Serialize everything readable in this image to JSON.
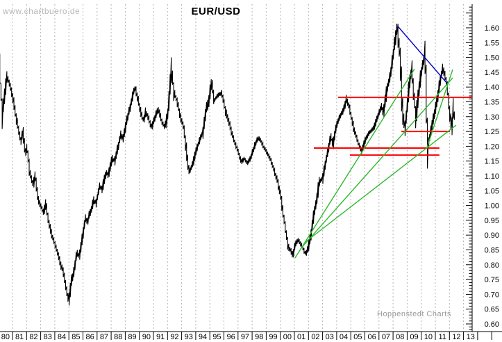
{
  "watermark": "www.chartbuero.de",
  "title": "EUR/USD",
  "credit": "Hoppenstedt Charts",
  "colors": {
    "background": "#ffffff",
    "price_bars": "#000000",
    "grid": "#b4b4b4",
    "axis": "#000000",
    "trend_green": "#2db82d",
    "trend_blue": "#0000c8",
    "support_red": "#ff0000",
    "watermark_gray": "#b8b8b8",
    "credit_gray": "#9a9a9a"
  },
  "chart_data": {
    "type": "bar",
    "title": "EUR/USD",
    "subtitle": "",
    "xlabel": "",
    "ylabel": "",
    "grid": "vertical-dashed-yearly",
    "y_axis": {
      "side": "right",
      "min": 0.6,
      "max": 1.6,
      "label_step": 0.05,
      "minor_tick_step": 0.01,
      "tick_labels": [
        "1.60",
        "1.55",
        "1.50",
        "1.45",
        "1.40",
        "1.35",
        "1.30",
        "1.25",
        "1.20",
        "1.15",
        "1.10",
        "1.05",
        "1.00",
        "0.95",
        "0.90",
        "0.85",
        "0.80",
        "0.75",
        "0.70",
        "0.65",
        "0.60"
      ]
    },
    "x_axis": {
      "start_year": 1980,
      "end_year": 2014,
      "tick_labels": [
        "80",
        "81",
        "82",
        "83",
        "84",
        "85",
        "86",
        "87",
        "88",
        "89",
        "90",
        "91",
        "92",
        "93",
        "94",
        "95",
        "96",
        "97",
        "98",
        "99",
        "00",
        "01",
        "02",
        "03",
        "04",
        "05",
        "06",
        "07",
        "08",
        "09",
        "10",
        "11",
        "12",
        "13"
      ]
    },
    "series_name": "EUR/USD monthly price",
    "series": [
      [
        1980.1,
        1.45
      ],
      [
        1980.27,
        1.31
      ],
      [
        1980.61,
        1.44
      ],
      [
        1981.0,
        1.37
      ],
      [
        1981.15,
        1.325
      ],
      [
        1981.44,
        1.25
      ],
      [
        1981.59,
        1.217
      ],
      [
        1981.74,
        1.248
      ],
      [
        1981.89,
        1.177
      ],
      [
        1982.03,
        1.194
      ],
      [
        1982.18,
        1.131
      ],
      [
        1982.33,
        1.091
      ],
      [
        1982.48,
        1.067
      ],
      [
        1982.62,
        1.1
      ],
      [
        1982.77,
        1.037
      ],
      [
        1982.92,
        1.006
      ],
      [
        1983.07,
        0.99
      ],
      [
        1983.22,
        0.973
      ],
      [
        1983.36,
        1.006
      ],
      [
        1983.51,
        0.959
      ],
      [
        1983.66,
        0.926
      ],
      [
        1983.81,
        0.896
      ],
      [
        1983.95,
        0.879
      ],
      [
        1984.1,
        0.856
      ],
      [
        1984.25,
        0.833
      ],
      [
        1984.4,
        0.802
      ],
      [
        1984.54,
        0.786
      ],
      [
        1984.69,
        0.755
      ],
      [
        1984.84,
        0.715
      ],
      [
        1984.99,
        0.677
      ],
      [
        1985.14,
        0.738
      ],
      [
        1985.28,
        0.762
      ],
      [
        1985.43,
        0.802
      ],
      [
        1985.58,
        0.842
      ],
      [
        1985.73,
        0.825
      ],
      [
        1985.87,
        0.865
      ],
      [
        1986.02,
        0.912
      ],
      [
        1986.17,
        0.959
      ],
      [
        1986.32,
        0.943
      ],
      [
        1986.47,
        0.973
      ],
      [
        1986.61,
        0.99
      ],
      [
        1986.76,
        1.02
      ],
      [
        1986.91,
        1.006
      ],
      [
        1987.06,
        1.037
      ],
      [
        1987.2,
        1.067
      ],
      [
        1987.35,
        1.053
      ],
      [
        1987.5,
        1.084
      ],
      [
        1987.65,
        1.114
      ],
      [
        1987.79,
        1.1
      ],
      [
        1987.94,
        1.131
      ],
      [
        1988.09,
        1.162
      ],
      [
        1988.24,
        1.148
      ],
      [
        1988.38,
        1.177
      ],
      [
        1988.53,
        1.207
      ],
      [
        1988.68,
        1.24
      ],
      [
        1988.83,
        1.224
      ],
      [
        1988.98,
        1.255
      ],
      [
        1989.12,
        1.288
      ],
      [
        1989.27,
        1.318
      ],
      [
        1989.42,
        1.349
      ],
      [
        1989.57,
        1.382
      ],
      [
        1989.71,
        1.396
      ],
      [
        1989.86,
        1.366
      ],
      [
        1990.01,
        1.335
      ],
      [
        1990.16,
        1.302
      ],
      [
        1990.31,
        1.288
      ],
      [
        1990.45,
        1.318
      ],
      [
        1990.6,
        1.302
      ],
      [
        1990.75,
        1.278
      ],
      [
        1990.9,
        1.264
      ],
      [
        1991.04,
        1.288
      ],
      [
        1991.19,
        1.311
      ],
      [
        1991.34,
        1.325
      ],
      [
        1991.49,
        1.302
      ],
      [
        1991.64,
        1.278
      ],
      [
        1991.79,
        1.264
      ],
      [
        1991.93,
        1.285
      ],
      [
        1992.08,
        1.33
      ],
      [
        1992.28,
        1.459
      ],
      [
        1992.43,
        1.389
      ],
      [
        1992.67,
        1.354
      ],
      [
        1992.92,
        1.295
      ],
      [
        1993.16,
        1.26
      ],
      [
        1993.41,
        1.154
      ],
      [
        1993.56,
        1.114
      ],
      [
        1993.8,
        1.142
      ],
      [
        1994.05,
        1.189
      ],
      [
        1994.3,
        1.224
      ],
      [
        1994.54,
        1.248
      ],
      [
        1994.74,
        1.33
      ],
      [
        1994.89,
        1.342
      ],
      [
        1995.13,
        1.417
      ],
      [
        1995.28,
        1.354
      ],
      [
        1995.48,
        1.366
      ],
      [
        1995.67,
        1.377
      ],
      [
        1995.87,
        1.377
      ],
      [
        1996.12,
        1.318
      ],
      [
        1996.36,
        1.283
      ],
      [
        1996.61,
        1.236
      ],
      [
        1996.86,
        1.201
      ],
      [
        1997.1,
        1.166
      ],
      [
        1997.25,
        1.147
      ],
      [
        1997.45,
        1.159
      ],
      [
        1997.69,
        1.142
      ],
      [
        1997.94,
        1.166
      ],
      [
        1998.18,
        1.201
      ],
      [
        1998.38,
        1.224
      ],
      [
        1998.48,
        1.229
      ],
      [
        1998.67,
        1.213
      ],
      [
        1998.87,
        1.194
      ],
      [
        1999.07,
        1.177
      ],
      [
        1999.31,
        1.154
      ],
      [
        1999.56,
        1.119
      ],
      [
        1999.8,
        1.084
      ],
      [
        2000.05,
        1.025
      ],
      [
        2000.3,
        0.943
      ],
      [
        2000.54,
        0.861
      ],
      [
        2000.74,
        0.849
      ],
      [
        2000.89,
        0.83
      ],
      [
        2001.08,
        0.872
      ],
      [
        2001.28,
        0.883
      ],
      [
        2001.48,
        0.868
      ],
      [
        2001.67,
        0.849
      ],
      [
        2001.82,
        0.835
      ],
      [
        2002.02,
        0.861
      ],
      [
        2002.16,
        0.9
      ],
      [
        2002.36,
        0.965
      ],
      [
        2002.56,
        1.01
      ],
      [
        2002.75,
        1.08
      ],
      [
        2003.0,
        1.09
      ],
      [
        2003.24,
        1.15
      ],
      [
        2003.58,
        1.236
      ],
      [
        2003.73,
        1.2
      ],
      [
        2003.98,
        1.27
      ],
      [
        2004.22,
        1.3
      ],
      [
        2004.47,
        1.32
      ],
      [
        2004.71,
        1.362
      ],
      [
        2004.96,
        1.318
      ],
      [
        2005.21,
        1.26
      ],
      [
        2005.45,
        1.224
      ],
      [
        2005.75,
        1.18
      ],
      [
        2006.04,
        1.224
      ],
      [
        2006.34,
        1.248
      ],
      [
        2006.63,
        1.26
      ],
      [
        2006.88,
        1.295
      ],
      [
        2007.17,
        1.335
      ],
      [
        2007.32,
        1.31
      ],
      [
        2007.56,
        1.39
      ],
      [
        2007.81,
        1.436
      ],
      [
        2008.05,
        1.52
      ],
      [
        2008.2,
        1.575
      ],
      [
        2008.3,
        1.6
      ],
      [
        2008.54,
        1.47
      ],
      [
        2008.64,
        1.34
      ],
      [
        2008.84,
        1.25
      ],
      [
        2009.13,
        1.4
      ],
      [
        2009.33,
        1.46
      ],
      [
        2009.62,
        1.29
      ],
      [
        2009.92,
        1.43
      ],
      [
        2010.26,
        1.51
      ],
      [
        2010.46,
        1.196
      ],
      [
        2010.85,
        1.29
      ],
      [
        2011.1,
        1.35
      ],
      [
        2011.34,
        1.42
      ],
      [
        2011.54,
        1.465
      ],
      [
        2011.83,
        1.41
      ],
      [
        2011.98,
        1.33
      ],
      [
        2012.08,
        1.285
      ],
      [
        2012.18,
        1.27
      ],
      [
        2012.27,
        1.32
      ],
      [
        2012.42,
        1.29
      ]
    ],
    "trend_lines": [
      {
        "name": "downtrend-from-2008-peak",
        "color_key": "trend_blue",
        "points": [
          [
            2008.34,
            1.605
          ],
          [
            2011.88,
            1.41
          ]
        ]
      },
      {
        "name": "uptrend-fan-1",
        "color_key": "trend_green",
        "points": [
          [
            2001.05,
            0.823
          ],
          [
            2009.52,
            1.461
          ]
        ]
      },
      {
        "name": "uptrend-fan-2",
        "color_key": "trend_green",
        "points": [
          [
            2001.44,
            0.854
          ],
          [
            2012.23,
            1.431
          ]
        ]
      },
      {
        "name": "uptrend-fan-3",
        "color_key": "trend_green",
        "points": [
          [
            2001.79,
            0.877
          ],
          [
            2012.47,
            1.271
          ]
        ]
      },
      {
        "name": "uptrend-from-2010-low",
        "color_key": "trend_green",
        "points": [
          [
            2010.41,
            1.196
          ],
          [
            2012.23,
            1.459
          ]
        ]
      }
    ],
    "horizontal_lines": [
      {
        "name": "resistance-1.365",
        "value": 1.365,
        "from_year": 2004.1,
        "to_year": 2013.61
      },
      {
        "name": "support-1.25",
        "value": 1.25,
        "from_year": 2008.59,
        "to_year": 2012.03
      },
      {
        "name": "support-1.19",
        "value": 1.194,
        "from_year": 2002.38,
        "to_year": 2011.29
      },
      {
        "name": "support-1.17",
        "value": 1.17,
        "from_year": 2004.94,
        "to_year": 2011.29
      }
    ]
  }
}
